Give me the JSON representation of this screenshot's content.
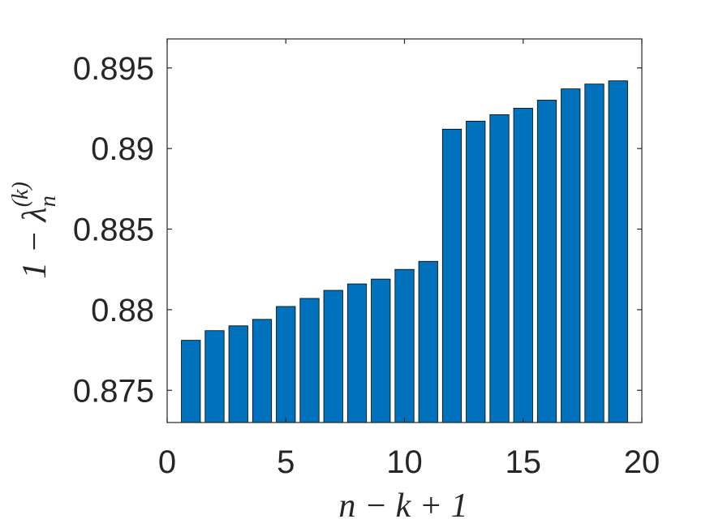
{
  "chart_data": {
    "type": "bar",
    "x": [
      1,
      2,
      3,
      4,
      5,
      6,
      7,
      8,
      9,
      10,
      11,
      12,
      13,
      14,
      15,
      16,
      17,
      18,
      19
    ],
    "values": [
      0.8781,
      0.8787,
      0.879,
      0.8794,
      0.8802,
      0.8807,
      0.8812,
      0.8816,
      0.8819,
      0.8825,
      0.883,
      0.8912,
      0.8917,
      0.8921,
      0.8925,
      0.893,
      0.8937,
      0.894,
      0.8942
    ],
    "xlabel": "n − k + 1",
    "ylabel_parts": {
      "prefix": "1 − λ",
      "subscript": "n",
      "superscript": "(k)"
    },
    "xlim": [
      0,
      20
    ],
    "ylim": [
      0.873,
      0.8968
    ],
    "xticks": [
      0,
      5,
      10,
      15,
      20
    ],
    "xtick_labels": [
      "0",
      "5",
      "10",
      "15",
      "20"
    ],
    "yticks": [
      0.875,
      0.88,
      0.885,
      0.89,
      0.895
    ],
    "ytick_labels": [
      "0.875",
      "0.88",
      "0.885",
      "0.89",
      "0.895"
    ],
    "grid": false,
    "bar_color": "#0072BD",
    "bar_edge_color": "#000000",
    "axis_color": "#262626"
  }
}
